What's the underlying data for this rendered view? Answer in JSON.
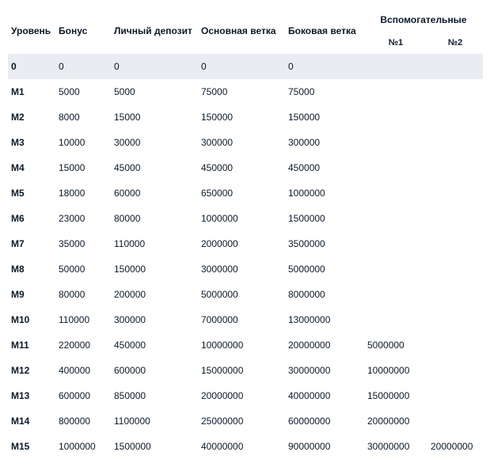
{
  "table": {
    "headers": {
      "level": "Уровень",
      "bonus": "Бонус",
      "deposit": "Личный депозит",
      "main_branch": "Основная ветка",
      "side_branch": "Боковая ветка",
      "aux_group": "Вспомогательные",
      "aux1": "№1",
      "aux2": "№2"
    },
    "rows": [
      {
        "level": "0",
        "bonus": "0",
        "deposit": "0",
        "main": "0",
        "side": "0",
        "aux1": "",
        "aux2": "",
        "highlight": true
      },
      {
        "level": "M1",
        "bonus": "5000",
        "deposit": "5000",
        "main": "75000",
        "side": "75000",
        "aux1": "",
        "aux2": "",
        "highlight": false
      },
      {
        "level": "M2",
        "bonus": "8000",
        "deposit": "15000",
        "main": "150000",
        "side": "150000",
        "aux1": "",
        "aux2": "",
        "highlight": false
      },
      {
        "level": "M3",
        "bonus": "10000",
        "deposit": "30000",
        "main": "300000",
        "side": "300000",
        "aux1": "",
        "aux2": "",
        "highlight": false
      },
      {
        "level": "M4",
        "bonus": "15000",
        "deposit": "45000",
        "main": "450000",
        "side": "450000",
        "aux1": "",
        "aux2": "",
        "highlight": false
      },
      {
        "level": "M5",
        "bonus": "18000",
        "deposit": "60000",
        "main": "650000",
        "side": "1000000",
        "aux1": "",
        "aux2": "",
        "highlight": false
      },
      {
        "level": "M6",
        "bonus": "23000",
        "deposit": "80000",
        "main": "1000000",
        "side": "1500000",
        "aux1": "",
        "aux2": "",
        "highlight": false
      },
      {
        "level": "M7",
        "bonus": "35000",
        "deposit": "110000",
        "main": "2000000",
        "side": "3500000",
        "aux1": "",
        "aux2": "",
        "highlight": false
      },
      {
        "level": "M8",
        "bonus": "50000",
        "deposit": "150000",
        "main": "3000000",
        "side": "5000000",
        "aux1": "",
        "aux2": "",
        "highlight": false
      },
      {
        "level": "M9",
        "bonus": "80000",
        "deposit": "200000",
        "main": "5000000",
        "side": "8000000",
        "aux1": "",
        "aux2": "",
        "highlight": false
      },
      {
        "level": "M10",
        "bonus": "110000",
        "deposit": "300000",
        "main": "7000000",
        "side": "13000000",
        "aux1": "",
        "aux2": "",
        "highlight": false
      },
      {
        "level": "M11",
        "bonus": "220000",
        "deposit": "450000",
        "main": "10000000",
        "side": "20000000",
        "aux1": "5000000",
        "aux2": "",
        "highlight": false
      },
      {
        "level": "M12",
        "bonus": "400000",
        "deposit": "600000",
        "main": "15000000",
        "side": "30000000",
        "aux1": "10000000",
        "aux2": "",
        "highlight": false
      },
      {
        "level": "M13",
        "bonus": "600000",
        "deposit": "850000",
        "main": "20000000",
        "side": "40000000",
        "aux1": "15000000",
        "aux2": "",
        "highlight": false
      },
      {
        "level": "M14",
        "bonus": "800000",
        "deposit": "1100000",
        "main": "25000000",
        "side": "60000000",
        "aux1": "20000000",
        "aux2": "",
        "highlight": false
      },
      {
        "level": "M15",
        "bonus": "1000000",
        "deposit": "1500000",
        "main": "40000000",
        "side": "90000000",
        "aux1": "30000000",
        "aux2": "20000000",
        "highlight": false
      }
    ],
    "colors": {
      "highlight_bg": "#e9edf2",
      "text": "#0a1a2a",
      "background": "#ffffff"
    }
  }
}
